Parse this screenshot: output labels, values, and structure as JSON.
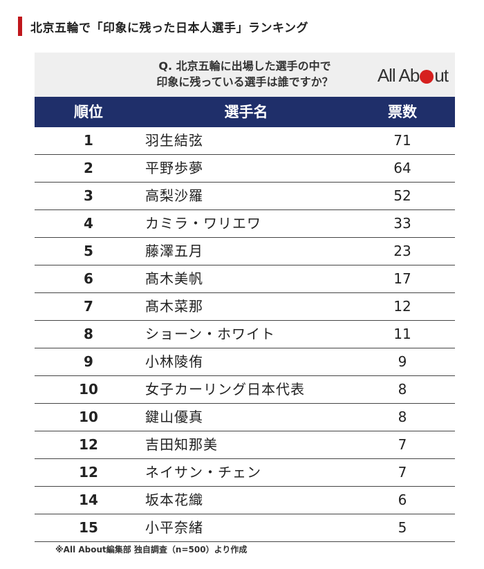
{
  "heading": "北京五輪で「印象に残った日本人選手」ランキング",
  "question": {
    "line1": "Q. 北京五輪に出場した選手の中で",
    "line2": "印象に残っている選手は誰ですか？"
  },
  "logo": {
    "left": "All Ab",
    "right": "ut"
  },
  "table": {
    "headers": {
      "rank": "順位",
      "name": "選手名",
      "votes": "票数"
    },
    "rows": [
      {
        "rank": "1",
        "name": "羽生結弦",
        "votes": "71"
      },
      {
        "rank": "2",
        "name": "平野歩夢",
        "votes": "64"
      },
      {
        "rank": "3",
        "name": "高梨沙羅",
        "votes": "52"
      },
      {
        "rank": "4",
        "name": "カミラ・ワリエワ",
        "votes": "33"
      },
      {
        "rank": "5",
        "name": "藤澤五月",
        "votes": "23"
      },
      {
        "rank": "6",
        "name": "髙木美帆",
        "votes": "17"
      },
      {
        "rank": "7",
        "name": "髙木菜那",
        "votes": "12"
      },
      {
        "rank": "8",
        "name": "ショーン・ホワイト",
        "votes": "11"
      },
      {
        "rank": "9",
        "name": "小林陵侑",
        "votes": "9"
      },
      {
        "rank": "10",
        "name": "女子カーリング日本代表",
        "votes": "8"
      },
      {
        "rank": "10",
        "name": "鍵山優真",
        "votes": "8"
      },
      {
        "rank": "12",
        "name": "吉田知那美",
        "votes": "7"
      },
      {
        "rank": "12",
        "name": "ネイサン・チェン",
        "votes": "7"
      },
      {
        "rank": "14",
        "name": "坂本花織",
        "votes": "6"
      },
      {
        "rank": "15",
        "name": "小平奈緒",
        "votes": "5"
      }
    ]
  },
  "footnote": "※All About編集部 独自調査（n=500）より作成",
  "colors": {
    "accent": "#c0171c",
    "header_bg": "#1f2f6a",
    "logo_dot": "#d6201f"
  }
}
